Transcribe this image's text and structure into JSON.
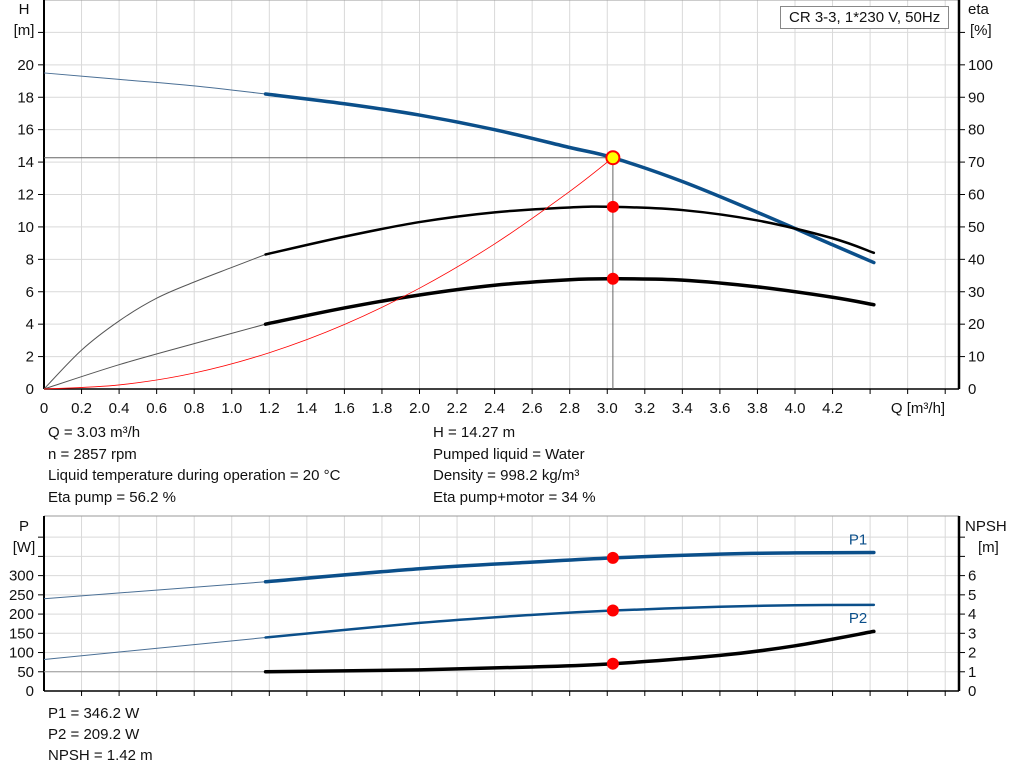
{
  "legend_box": "CR 3-3, 1*230 V, 50Hz",
  "colors": {
    "blue": "#0b4f8a",
    "black": "#000000",
    "red": "#ff0000",
    "op_fill": "#ffff00",
    "grid": "#d9d9d9"
  },
  "chart_data": [
    {
      "type": "line",
      "x_label": "Q [m³/h]",
      "x_ticks": [
        "0",
        "0.2",
        "0.4",
        "0.6",
        "0.8",
        "1.0",
        "1.2",
        "1.4",
        "1.6",
        "1.8",
        "2.0",
        "2.2",
        "2.4",
        "2.6",
        "2.8",
        "3.0",
        "3.2",
        "3.4",
        "3.6",
        "3.8",
        "4.0",
        "4.2"
      ],
      "xlim": [
        0,
        4.87
      ],
      "y_left": {
        "label": "H",
        "unit": "[m]",
        "ticks": [
          "0",
          "2",
          "4",
          "6",
          "8",
          "10",
          "12",
          "14",
          "16",
          "18",
          "20"
        ],
        "lim": [
          0,
          24
        ]
      },
      "y_right": {
        "label": "eta",
        "unit": "[%]",
        "ticks": [
          "0",
          "10",
          "20",
          "30",
          "40",
          "50",
          "60",
          "70",
          "80",
          "90",
          "100"
        ],
        "lim": [
          0,
          120
        ]
      },
      "grid": true,
      "operating_range": [
        1.18,
        4.42
      ],
      "series": [
        {
          "id": "H",
          "axis": "left",
          "color": "#0b4f8a",
          "points": [
            [
              0,
              19.5
            ],
            [
              0.4,
              19.1
            ],
            [
              0.8,
              18.7
            ],
            [
              1.18,
              18.2
            ],
            [
              1.6,
              17.6
            ],
            [
              2.0,
              16.9
            ],
            [
              2.4,
              16.0
            ],
            [
              2.8,
              14.9
            ],
            [
              3.03,
              14.27
            ],
            [
              3.4,
              12.8
            ],
            [
              3.8,
              10.9
            ],
            [
              4.2,
              8.9
            ],
            [
              4.42,
              7.8
            ]
          ]
        },
        {
          "id": "eta_pump",
          "axis": "right",
          "color": "#000000",
          "points": [
            [
              0,
              0
            ],
            [
              0.2,
              12
            ],
            [
              0.4,
              21
            ],
            [
              0.6,
              28
            ],
            [
              0.8,
              33
            ],
            [
              1.0,
              37.5
            ],
            [
              1.18,
              41.5
            ],
            [
              1.6,
              47
            ],
            [
              2.0,
              51.5
            ],
            [
              2.4,
              54.5
            ],
            [
              2.8,
              56
            ],
            [
              3.03,
              56.2
            ],
            [
              3.4,
              55.2
            ],
            [
              3.8,
              52
            ],
            [
              4.2,
              46.5
            ],
            [
              4.42,
              42
            ]
          ]
        },
        {
          "id": "eta_pump_motor",
          "axis": "right",
          "color": "#000000",
          "points": [
            [
              0,
              0
            ],
            [
              0.4,
              7.5
            ],
            [
              0.8,
              14
            ],
            [
              1.18,
              20
            ],
            [
              1.6,
              25
            ],
            [
              2.0,
              29
            ],
            [
              2.4,
              32
            ],
            [
              2.8,
              33.7
            ],
            [
              3.03,
              34
            ],
            [
              3.4,
              33.6
            ],
            [
              3.8,
              31.5
            ],
            [
              4.2,
              28.3
            ],
            [
              4.42,
              26
            ]
          ]
        },
        {
          "id": "system_curve",
          "axis": "left",
          "color": "#ff0000",
          "points": [
            [
              0,
              0
            ],
            [
              0.4,
              0.25
            ],
            [
              0.8,
              0.99
            ],
            [
              1.2,
              2.24
            ],
            [
              1.6,
              3.98
            ],
            [
              2.0,
              6.22
            ],
            [
              2.4,
              8.95
            ],
            [
              2.8,
              12.19
            ],
            [
              3.03,
              14.27
            ]
          ]
        }
      ],
      "operating_point": {
        "Q": 3.03,
        "H": 14.27,
        "eta_pump": 56.2,
        "eta_pump_motor": 34
      }
    },
    {
      "type": "line",
      "xlim": [
        0,
        4.87
      ],
      "y_left": {
        "label": "P",
        "unit": "[W]",
        "ticks": [
          "0",
          "50",
          "100",
          "150",
          "200",
          "250",
          "300"
        ],
        "lim": [
          0,
          455
        ]
      },
      "y_right": {
        "label": "NPSH",
        "unit": "[m]",
        "ticks": [
          "0",
          "1",
          "2",
          "3",
          "4",
          "5",
          "6"
        ],
        "lim": [
          0,
          9.1
        ]
      },
      "grid": true,
      "series": [
        {
          "id": "P1",
          "name": "P1",
          "axis": "left",
          "color": "#0b4f8a",
          "points": [
            [
              0,
              240
            ],
            [
              1.18,
              284
            ],
            [
              2.0,
              318
            ],
            [
              2.6,
              335
            ],
            [
              3.03,
              346.2
            ],
            [
              3.6,
              356
            ],
            [
              4.0,
              359
            ],
            [
              4.42,
              360
            ]
          ]
        },
        {
          "id": "P2",
          "name": "P2",
          "axis": "left",
          "color": "#0b4f8a",
          "points": [
            [
              0,
              82
            ],
            [
              1.18,
              139
            ],
            [
              2.0,
              177
            ],
            [
              2.6,
              198
            ],
            [
              3.03,
              209.2
            ],
            [
              3.6,
              219
            ],
            [
              4.0,
              223
            ],
            [
              4.42,
              224
            ]
          ]
        },
        {
          "id": "NPSH",
          "axis": "right",
          "color": "#000000",
          "points": [
            [
              0,
              1.0
            ],
            [
              1.18,
              1.0
            ],
            [
              2.0,
              1.1
            ],
            [
              2.6,
              1.25
            ],
            [
              3.03,
              1.42
            ],
            [
              3.6,
              1.85
            ],
            [
              4.0,
              2.35
            ],
            [
              4.42,
              3.1
            ]
          ]
        }
      ],
      "operating_point": {
        "Q": 3.03,
        "P1": 346.2,
        "P2": 209.2,
        "NPSH": 1.42
      }
    }
  ],
  "info_top": {
    "left": [
      "Q = 3.03 m³/h",
      "n = 2857 rpm",
      "Liquid temperature during operation = 20 °C",
      "Eta pump = 56.2 %"
    ],
    "right": [
      "H = 14.27 m",
      "Pumped liquid = Water",
      "Density = 998.2 kg/m³",
      "Eta pump+motor = 34 %"
    ]
  },
  "info_bottom": [
    "P1 = 346.2 W",
    "P2 = 209.2 W",
    "NPSH = 1.42 m"
  ]
}
